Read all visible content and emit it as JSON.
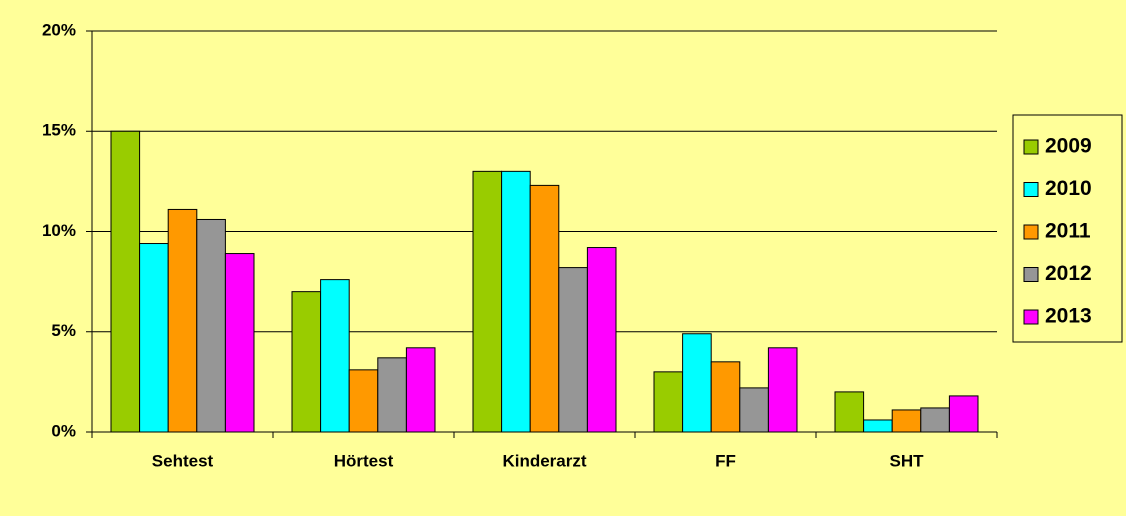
{
  "chart_data": {
    "type": "bar",
    "categories": [
      "Sehtest",
      "Hörtest",
      "Kinderarzt",
      "FF",
      "SHT"
    ],
    "series": [
      {
        "name": "2009",
        "color": "#99cc00",
        "values": [
          15.0,
          7.0,
          13.0,
          3.0,
          2.0
        ]
      },
      {
        "name": "2010",
        "color": "#00ffff",
        "values": [
          9.4,
          7.6,
          13.0,
          4.9,
          0.6
        ]
      },
      {
        "name": "2011",
        "color": "#ff9900",
        "values": [
          11.1,
          3.1,
          12.3,
          3.5,
          1.1
        ]
      },
      {
        "name": "2012",
        "color": "#969696",
        "values": [
          10.6,
          3.7,
          8.2,
          2.2,
          1.2
        ]
      },
      {
        "name": "2013",
        "color": "#ff00ff",
        "values": [
          8.9,
          4.2,
          9.2,
          4.2,
          1.8
        ]
      }
    ],
    "ylim": [
      0,
      20
    ],
    "yticks": [
      {
        "value": 0,
        "label": "0%"
      },
      {
        "value": 5,
        "label": "5%"
      },
      {
        "value": 10,
        "label": "10%"
      },
      {
        "value": 15,
        "label": "15%"
      },
      {
        "value": 20,
        "label": "20%"
      }
    ],
    "grid": true,
    "legend": "right"
  }
}
